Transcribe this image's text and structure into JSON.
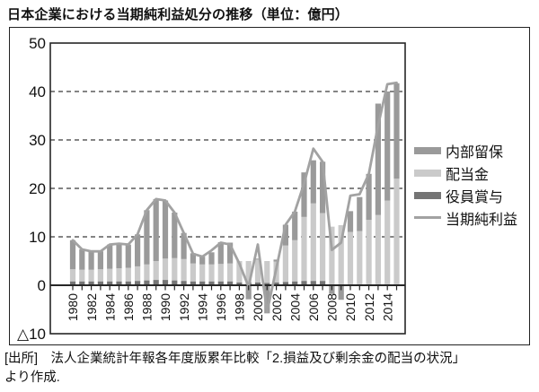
{
  "title": "日本企業における当期純利益処分の推移（単位：億円）",
  "source": {
    "line1": "[出所]　法人企業統計年報各年度版累年比較「2.損益及び剰余金の配当の状況」",
    "line2": "より作成."
  },
  "legend": {
    "items": [
      {
        "label": "内部留保",
        "swatch": "bar",
        "color": "#9a9a9a"
      },
      {
        "label": "配当金",
        "swatch": "bar",
        "color": "#cacaca"
      },
      {
        "label": "役員賞与",
        "swatch": "bar",
        "color": "#757575"
      },
      {
        "label": "当期純利益",
        "swatch": "line",
        "color": "#a2a2a2"
      }
    ]
  },
  "chart_data": {
    "type": "bar",
    "subtype": "stacked-bar-with-line",
    "title": "日本企業における当期純利益処分の推移",
    "unit": "億円",
    "grid": "horizontal-dashed",
    "legend_position": "right",
    "ylim": [
      -10,
      50
    ],
    "yticks": [
      {
        "value": 50,
        "label": "50"
      },
      {
        "value": 40,
        "label": "40"
      },
      {
        "value": 30,
        "label": "30"
      },
      {
        "value": 20,
        "label": "20"
      },
      {
        "value": 10,
        "label": "10"
      },
      {
        "value": 0,
        "label": "0"
      },
      {
        "value": -10,
        "label": "△10"
      }
    ],
    "x": [
      1980,
      1981,
      1982,
      1983,
      1984,
      1985,
      1986,
      1987,
      1988,
      1989,
      1990,
      1991,
      1992,
      1993,
      1994,
      1995,
      1996,
      1997,
      1998,
      1999,
      2000,
      2001,
      2002,
      2003,
      2004,
      2005,
      2006,
      2007,
      2008,
      2009,
      2010,
      2011,
      2012,
      2013,
      2014,
      2015
    ],
    "xtick_every": 2,
    "series": [
      {
        "name": "役員賞与",
        "render": "bar",
        "stack_order": 0,
        "color": "#757575",
        "values": [
          0.8,
          0.8,
          0.8,
          0.8,
          0.8,
          0.8,
          0.8,
          0.9,
          1.0,
          1.1,
          1.1,
          1.0,
          0.9,
          0.8,
          0.8,
          0.8,
          0.8,
          0.8,
          0.6,
          0.6,
          0.6,
          0.5,
          0.6,
          0.7,
          0.8,
          0.9,
          0.9,
          0.9,
          0,
          0,
          0,
          0,
          0,
          0,
          0,
          0
        ]
      },
      {
        "name": "配当金",
        "render": "bar",
        "stack_order": 1,
        "color": "#cacaca",
        "values": [
          2.5,
          2.4,
          2.4,
          2.5,
          2.6,
          2.7,
          2.8,
          3.0,
          3.3,
          3.9,
          4.4,
          4.6,
          4.5,
          3.7,
          3.5,
          3.5,
          3.6,
          3.7,
          4.4,
          4.4,
          4.7,
          4.5,
          4.3,
          7.5,
          8.5,
          13.2,
          16.0,
          14.0,
          12.1,
          12.4,
          11.0,
          11.2,
          13.5,
          14.5,
          17.5,
          22.0
        ]
      },
      {
        "name": "内部留保",
        "render": "bar",
        "stack_order": 2,
        "color": "#9a9a9a",
        "values": [
          6.0,
          4.2,
          3.8,
          3.7,
          5.0,
          5.1,
          4.8,
          6.6,
          11.2,
          12.8,
          12.0,
          9.4,
          5.4,
          2.1,
          1.6,
          2.5,
          4.5,
          4.3,
          0.0,
          -2.9,
          0.2,
          -5.8,
          0.4,
          4.3,
          5.9,
          9.2,
          8.9,
          10.6,
          -1.8,
          -3.0,
          4.3,
          7.0,
          9.5,
          23.0,
          22.5,
          19.7
        ]
      },
      {
        "name": "当期純利益",
        "render": "line",
        "color": "#a2a2a2",
        "values": [
          9.3,
          7.4,
          7.0,
          7.0,
          8.4,
          8.6,
          8.4,
          10.5,
          15.5,
          17.8,
          17.5,
          15.0,
          10.8,
          6.5,
          5.9,
          7.2,
          8.8,
          8.4,
          4.5,
          -0.3,
          8.4,
          -5.5,
          3.5,
          12.5,
          15.2,
          21.0,
          28.2,
          25.5,
          7.3,
          8.8,
          18.5,
          18.8,
          23.0,
          33.0,
          41.5,
          41.8
        ]
      }
    ]
  }
}
